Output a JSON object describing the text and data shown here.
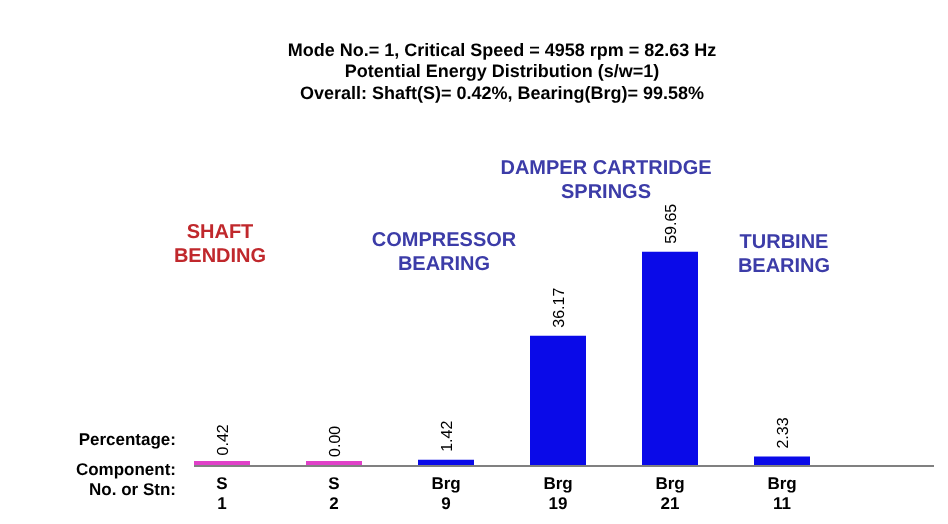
{
  "chart_data": {
    "type": "bar",
    "title": [
      "Mode No.= 1, Critical Speed = 4958 rpm = 82.63 Hz",
      "Potential Energy Distribution (s/w=1)",
      "Overall: Shaft(S)= 0.42%, Bearing(Brg)= 99.58%"
    ],
    "categories": [
      "S\n1",
      "S\n2",
      "Brg\n9",
      "Brg\n19",
      "Brg\n21",
      "Brg\n11"
    ],
    "values": [
      0.42,
      0.0,
      1.42,
      36.17,
      59.65,
      2.33
    ],
    "colors": [
      "#e040c8",
      "#e040c8",
      "#0a0ae8",
      "#0a0ae8",
      "#0a0ae8",
      "#0a0ae8"
    ],
    "value_labels": [
      "0.42",
      "0.00",
      "1.42",
      "36.17",
      "59.65",
      "2.33"
    ],
    "legend": false,
    "grid": false,
    "annotations": [
      "SHAFT BENDING",
      "COMPRESSOR BEARING",
      "DAMPER CARTRIDGE SPRINGS",
      "TURBINE BEARING",
      "Percentage:",
      "Component:",
      "No. or Stn:"
    ]
  }
}
